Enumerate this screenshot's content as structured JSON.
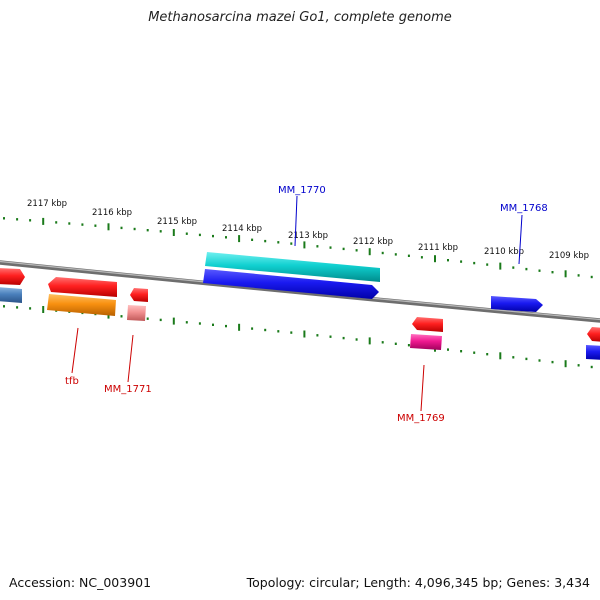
{
  "title": "Methanosarcina mazei Go1, complete genome",
  "footer": {
    "accession": "Accession: NC_003901",
    "summary": "Topology: circular; Length: 4,096,345 bp; Genes: 3,434"
  },
  "ruler_labels": [
    "2117 kbp",
    "2116 kbp",
    "2115 kbp",
    "2114 kbp",
    "2113 kbp",
    "2112 kbp",
    "2111 kbp",
    "2110 kbp",
    "2109 kbp"
  ],
  "gene_labels": [
    {
      "text": "MM_1770",
      "color": "#0000cc"
    },
    {
      "text": "MM_1768",
      "color": "#0000cc"
    },
    {
      "text": "tfb",
      "color": "#cc0000"
    },
    {
      "text": "MM_1771",
      "color": "#cc0000"
    },
    {
      "text": "MM_1769",
      "color": "#cc0000"
    }
  ],
  "colors": {
    "backbone": "#808080",
    "tick": "#1a7a1a",
    "red": "#e81818",
    "blue": "#1414e0",
    "cyan": "#18c8c8",
    "orange": "#f08c10",
    "pink": "#f08a8a",
    "magenta": "#e8148c",
    "steel": "#4a7fb8"
  }
}
